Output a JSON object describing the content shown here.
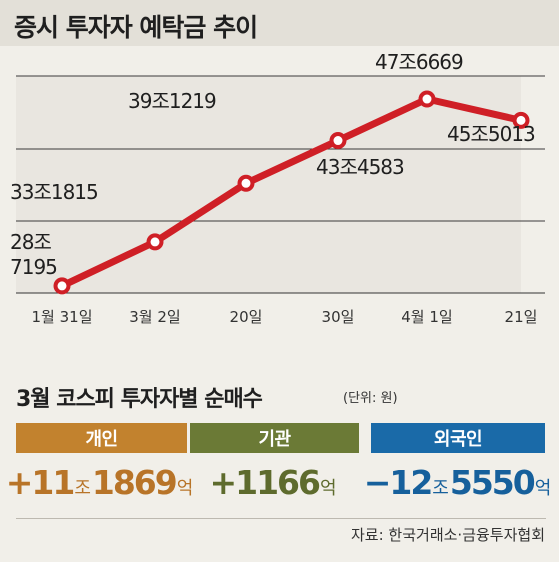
{
  "title": "증시 투자자 예탁금 추이",
  "chart_data": {
    "type": "line",
    "title": "증시 투자자 예탁금 추이",
    "categories": [
      "1월 31일",
      "3월 2일",
      "20일",
      "30일",
      "4월 1일",
      "21일"
    ],
    "values": [
      28.7195,
      33.1815,
      39.1219,
      43.4583,
      47.6669,
      45.5013
    ],
    "value_labels": [
      "28조\n7195",
      "33조1815",
      "39조1219",
      "43조4583",
      "47조6669",
      "45조5013"
    ],
    "ylim": [
      28,
      50
    ],
    "xlabel": "",
    "ylabel": "",
    "grid": true,
    "color": "#cf1f26"
  },
  "net_buying": {
    "title": "3월 코스피 투자자별 순매수",
    "unit": "(단위: 원)",
    "groups": [
      {
        "label": "개인",
        "sign": "+",
        "parts": [
          {
            "t": "11",
            "small": false
          },
          {
            "t": "조",
            "small": true
          },
          {
            "t": "1869",
            "small": false
          },
          {
            "t": "억",
            "small": true
          }
        ],
        "color": "#c2822e"
      },
      {
        "label": "기관",
        "sign": "+",
        "parts": [
          {
            "t": "1166",
            "small": false
          },
          {
            "t": "억",
            "small": true
          }
        ],
        "color": "#6b7a36"
      },
      {
        "label": "외국인",
        "sign": "−",
        "parts": [
          {
            "t": "12",
            "small": false
          },
          {
            "t": "조",
            "small": true
          },
          {
            "t": "5550",
            "small": false
          },
          {
            "t": "억",
            "small": true
          }
        ],
        "color": "#1a6aa8"
      }
    ]
  },
  "source": "자료: 한국거래소·금융투자협회"
}
